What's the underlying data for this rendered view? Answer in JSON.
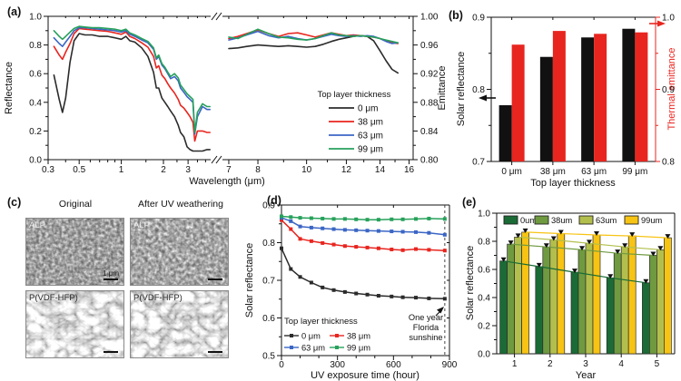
{
  "panel_c": {
    "label": "(c)",
    "col_headers": [
      "Original",
      "After UV weathering"
    ],
    "images": [
      {
        "tag": "ALP"
      },
      {
        "tag": "ALP"
      },
      {
        "tag": "P(VDF-HFP)"
      },
      {
        "tag": "P(VDF-HFP)"
      }
    ],
    "scale_text": "1 μm"
  },
  "chart_data": [
    {
      "id": "a",
      "type": "line",
      "panel_label": "(a)",
      "xlabel": "Wavelength (μm)",
      "ylabel_left": "Reflectance",
      "ylabel_right": "Emittance",
      "broken_x_axis": true,
      "legend_title": "Top layer thickness",
      "legend_position": "lower right",
      "seg1": {
        "scale": "log",
        "xlim": [
          0.3,
          4.35
        ],
        "xticks": [
          "0.3",
          "0.5",
          "1",
          "2",
          "3"
        ],
        "xticks_minor": [
          0.4,
          0.6,
          0.7,
          0.8,
          0.9,
          1.5,
          2.5,
          3.5,
          4
        ]
      },
      "seg2": {
        "scale": "log",
        "xlim": [
          6.8,
          16.3
        ],
        "xticks": [
          "7",
          "8",
          "10",
          "12",
          "14",
          "16"
        ],
        "xticks_minor": [
          9,
          11,
          13,
          15
        ]
      },
      "ylim_left": [
        0,
        1
      ],
      "yticks_left": [
        "0.0",
        "0.2",
        "0.4",
        "0.6",
        "0.8",
        "1.0"
      ],
      "yticks_left_minor": [
        0.1,
        0.3,
        0.5,
        0.7,
        0.9
      ],
      "ylim_right": [
        0.8,
        1.0
      ],
      "yticks_right": [
        "0.80",
        "0.84",
        "0.88",
        "0.92",
        "0.96",
        "1.00"
      ],
      "yticks_right_minor": [
        0.82,
        0.86,
        0.9,
        0.94,
        0.98
      ],
      "x_reflectance": [
        0.33,
        0.36,
        0.38,
        0.4,
        0.43,
        0.46,
        0.5,
        0.55,
        0.62,
        0.7,
        0.8,
        0.9,
        1.0,
        1.08,
        1.15,
        1.25,
        1.4,
        1.55,
        1.7,
        1.78,
        1.85,
        1.95,
        2.05,
        2.15,
        2.25,
        2.4,
        2.55,
        2.65,
        2.8,
        2.95,
        3.1,
        3.25,
        3.35,
        3.5,
        3.8,
        4.1,
        4.3
      ],
      "x_emittance": [
        7.0,
        7.3,
        7.6,
        8.0,
        8.4,
        8.8,
        9.2,
        9.6,
        10.0,
        10.4,
        10.8,
        11.2,
        11.6,
        12.0,
        12.4,
        12.8,
        13.2,
        13.6,
        14.0,
        14.4,
        14.8,
        15.2
      ],
      "series": [
        {
          "name": "0 μm",
          "color": "#2b2b2b",
          "y_reflectance": [
            0.59,
            0.42,
            0.33,
            0.43,
            0.68,
            0.83,
            0.88,
            0.87,
            0.87,
            0.86,
            0.86,
            0.85,
            0.84,
            0.86,
            0.83,
            0.82,
            0.78,
            0.72,
            0.61,
            0.5,
            0.5,
            0.43,
            0.4,
            0.37,
            0.34,
            0.3,
            0.24,
            0.19,
            0.16,
            0.09,
            0.07,
            0.06,
            0.06,
            0.06,
            0.06,
            0.07,
            0.07
          ],
          "y_emittance": [
            0.955,
            0.956,
            0.958,
            0.96,
            0.959,
            0.958,
            0.959,
            0.958,
            0.957,
            0.958,
            0.961,
            0.965,
            0.968,
            0.97,
            0.972,
            0.973,
            0.972,
            0.966,
            0.952,
            0.938,
            0.926,
            0.921
          ]
        },
        {
          "name": "38 μm",
          "color": "#e8251f",
          "y_reflectance": [
            0.79,
            0.73,
            0.7,
            0.75,
            0.81,
            0.88,
            0.915,
            0.91,
            0.905,
            0.9,
            0.895,
            0.885,
            0.875,
            0.89,
            0.86,
            0.845,
            0.815,
            0.785,
            0.72,
            0.64,
            0.655,
            0.59,
            0.565,
            0.53,
            0.5,
            0.465,
            0.42,
            0.38,
            0.36,
            0.33,
            0.3,
            0.26,
            0.13,
            0.2,
            0.2,
            0.19,
            0.19
          ],
          "y_emittance": [
            0.969,
            0.972,
            0.976,
            0.981,
            0.976,
            0.972,
            0.976,
            0.977,
            0.974,
            0.971,
            0.974,
            0.977,
            0.975,
            0.973,
            0.974,
            0.973,
            0.972,
            0.971,
            0.969,
            0.966,
            0.963,
            0.962
          ]
        },
        {
          "name": "63 μm",
          "color": "#3b66c4",
          "y_reflectance": [
            0.85,
            0.81,
            0.79,
            0.82,
            0.86,
            0.9,
            0.92,
            0.92,
            0.915,
            0.91,
            0.905,
            0.9,
            0.89,
            0.9,
            0.875,
            0.86,
            0.835,
            0.815,
            0.77,
            0.7,
            0.72,
            0.66,
            0.635,
            0.6,
            0.565,
            0.58,
            0.55,
            0.5,
            0.47,
            0.44,
            0.42,
            0.4,
            0.18,
            0.3,
            0.37,
            0.35,
            0.35
          ],
          "y_emittance": [
            0.967,
            0.97,
            0.974,
            0.979,
            0.973,
            0.97,
            0.972,
            0.969,
            0.967,
            0.969,
            0.972,
            0.975,
            0.973,
            0.972,
            0.973,
            0.972,
            0.973,
            0.972,
            0.969,
            0.965,
            0.962,
            0.963
          ]
        },
        {
          "name": "99 μm",
          "color": "#27a15b",
          "y_reflectance": [
            0.9,
            0.86,
            0.84,
            0.86,
            0.89,
            0.915,
            0.93,
            0.925,
            0.92,
            0.92,
            0.915,
            0.91,
            0.9,
            0.91,
            0.885,
            0.87,
            0.845,
            0.825,
            0.78,
            0.71,
            0.73,
            0.67,
            0.645,
            0.61,
            0.58,
            0.6,
            0.57,
            0.52,
            0.49,
            0.46,
            0.44,
            0.42,
            0.19,
            0.33,
            0.39,
            0.37,
            0.37
          ],
          "y_emittance": [
            0.971,
            0.969,
            0.975,
            0.982,
            0.976,
            0.971,
            0.97,
            0.968,
            0.967,
            0.969,
            0.973,
            0.977,
            0.974,
            0.973,
            0.972,
            0.973,
            0.972,
            0.971,
            0.969,
            0.967,
            0.965,
            0.963
          ]
        }
      ]
    },
    {
      "id": "b",
      "type": "bar",
      "panel_label": "(b)",
      "xlabel": "Top layer thickness",
      "ylabel_left": "Solar reflectance",
      "ylabel_right": "Thermal emittance",
      "categories": [
        "0 μm",
        "38 μm",
        "63 μm",
        "99 μm"
      ],
      "ylim_left": [
        0.7,
        0.9
      ],
      "yticks_left": [
        "0.7",
        "0.8",
        "0.9"
      ],
      "yticks_left_minor": [
        0.75,
        0.85
      ],
      "ylim_right": [
        0.8,
        1.0
      ],
      "yticks_right": [
        "0.8",
        "0.9",
        "1.0"
      ],
      "yticks_right_minor": [
        0.85,
        0.95
      ],
      "series": [
        {
          "name": "Solar reflectance",
          "axis": "left",
          "color": "#111111",
          "values": [
            0.778,
            0.845,
            0.872,
            0.884
          ]
        },
        {
          "name": "Thermal emittance",
          "axis": "right",
          "color": "#e8251f",
          "values": [
            0.962,
            0.981,
            0.977,
            0.979
          ]
        }
      ]
    },
    {
      "id": "d",
      "type": "line",
      "panel_label": "(d)",
      "xlabel": "UV exposure time (hour)",
      "ylabel": "Solar reflectance",
      "xlim": [
        0,
        900
      ],
      "xticks": [
        "0",
        "300",
        "600",
        "900"
      ],
      "xticks_minor": [
        100,
        200,
        400,
        500,
        700,
        800
      ],
      "ylim": [
        0.5,
        0.9
      ],
      "yticks": [
        "0.5",
        "0.6",
        "0.7",
        "0.8",
        "0.9"
      ],
      "yticks_minor": [
        0.55,
        0.65,
        0.75,
        0.85
      ],
      "legend_title": "Top layer thickness",
      "dashed_line_x": 875,
      "annotation": [
        "One year",
        "Florida",
        "sunshine"
      ],
      "x": [
        0,
        50,
        100,
        160,
        220,
        280,
        340,
        400,
        460,
        520,
        590,
        650,
        720,
        790,
        875
      ],
      "series": [
        {
          "name": "0 μm",
          "color": "#2b2b2b",
          "values": [
            0.785,
            0.73,
            0.709,
            0.694,
            0.681,
            0.674,
            0.669,
            0.665,
            0.662,
            0.659,
            0.657,
            0.655,
            0.654,
            0.652,
            0.651
          ]
        },
        {
          "name": "38 μm",
          "color": "#e8251f",
          "values": [
            0.86,
            0.836,
            0.81,
            0.804,
            0.799,
            0.795,
            0.791,
            0.789,
            0.787,
            0.785,
            0.782,
            0.78,
            0.783,
            0.781,
            0.779
          ]
        },
        {
          "name": "63 μm",
          "color": "#3b66c4",
          "values": [
            0.866,
            0.857,
            0.843,
            0.84,
            0.838,
            0.836,
            0.834,
            0.833,
            0.832,
            0.831,
            0.83,
            0.829,
            0.828,
            0.826,
            0.821
          ]
        },
        {
          "name": "99 μm",
          "color": "#27a15b",
          "values": [
            0.87,
            0.868,
            0.866,
            0.865,
            0.864,
            0.863,
            0.863,
            0.862,
            0.861,
            0.861,
            0.862,
            0.862,
            0.863,
            0.864,
            0.863
          ]
        }
      ]
    },
    {
      "id": "e",
      "type": "bar",
      "panel_label": "(e)",
      "xlabel": "Year",
      "ylabel": "Solar reflectance",
      "categories": [
        "1",
        "2",
        "3",
        "4",
        "5"
      ],
      "ylim": [
        0.0,
        1.0
      ],
      "yticks": [
        "0.0",
        "0.2",
        "0.4",
        "0.6",
        "0.8",
        "1.0"
      ],
      "yticks_minor": [
        0.1,
        0.3,
        0.5,
        0.7,
        0.9
      ],
      "legend_position": "top inside",
      "trend_lines": true,
      "series": [
        {
          "name": "0um",
          "color": "#1a6b35",
          "values": [
            0.66,
            0.62,
            0.58,
            0.54,
            0.505
          ]
        },
        {
          "name": "38um",
          "color": "#6f9a40",
          "values": [
            0.78,
            0.76,
            0.74,
            0.715,
            0.7
          ]
        },
        {
          "name": "63um",
          "color": "#b3bf4c",
          "values": [
            0.83,
            0.81,
            0.785,
            0.76,
            0.74
          ]
        },
        {
          "name": "99um",
          "color": "#f7c414",
          "values": [
            0.865,
            0.855,
            0.845,
            0.838,
            0.825
          ]
        }
      ]
    }
  ]
}
